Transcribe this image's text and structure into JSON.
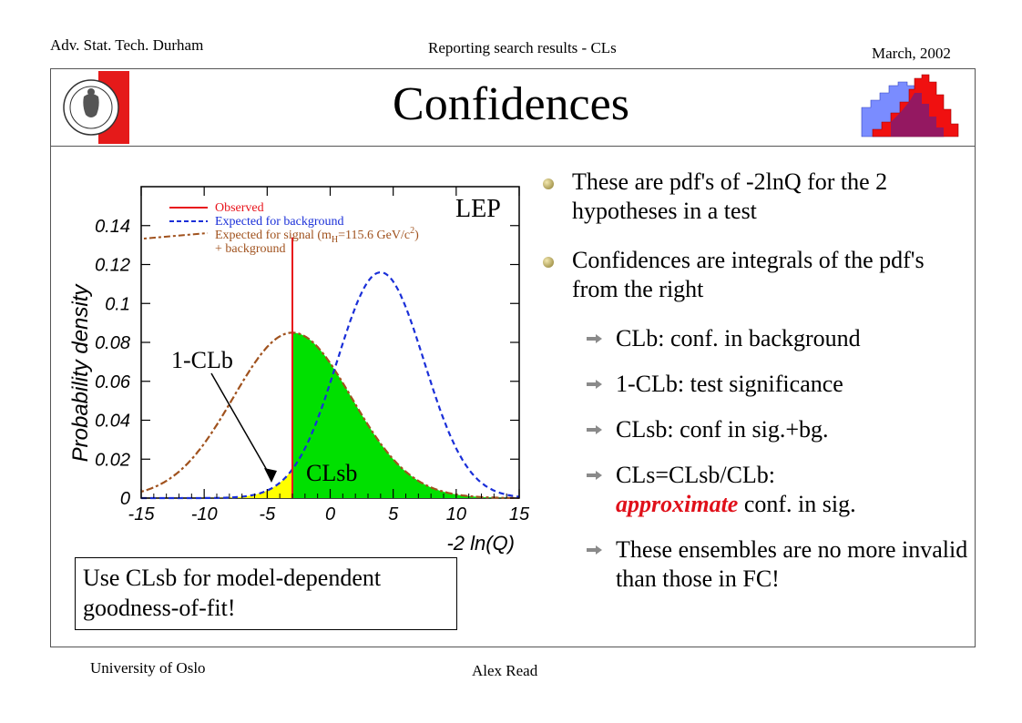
{
  "header": {
    "left": "Adv. Stat. Tech. Durham",
    "center": "Reporting search results - CLs",
    "right": "March, 2002"
  },
  "footer": {
    "left": "University of Oslo",
    "center": "Alex Read"
  },
  "title": "Confidences",
  "bullets": [
    {
      "text": "These are pdf's of -2lnQ for the 2 hypotheses in a test"
    },
    {
      "text": "Confidences are integrals of the pdf's from the right"
    }
  ],
  "sub_bullets": [
    "CLb: conf. in background",
    "1-CLb: test significance",
    "CLsb: conf in sig.+bg.",
    "CLs=CLsb/CLb:",
    "These ensembles are no more invalid than those in FC!"
  ],
  "clsb_rest": {
    "emph": "approximate",
    "tail": " conf. in sig."
  },
  "note_box": "Use CLsb for model-dependent goodness-of-fit!",
  "colors": {
    "observed": "#e8141c",
    "background": "#1a2fd8",
    "signal": "#a0521e",
    "clsb_fill": "#00e000",
    "one_minus_clb_fill": "#ffff00"
  },
  "chart_data": {
    "type": "line",
    "xlabel": "-2 ln(Q)",
    "ylabel": "Probability density",
    "xlim": [
      -15,
      15
    ],
    "ylim": [
      0,
      0.16
    ],
    "x_ticks": [
      -15,
      -10,
      -5,
      0,
      5,
      10,
      15
    ],
    "y_ticks": [
      0,
      0.02,
      0.04,
      0.06,
      0.08,
      0.1,
      0.12,
      0.14
    ],
    "x_tick_labels": [
      "-15",
      "-10",
      "-5",
      "0",
      "5",
      "10",
      "15"
    ],
    "y_tick_labels": [
      "0",
      "0.02",
      "0.04",
      "0.06",
      "0.08",
      "0.1",
      "0.12",
      "0.14"
    ],
    "legend": {
      "position": "top",
      "entries": [
        "Observed",
        "Expected for background",
        "Expected for signal (m",
        "+ background"
      ],
      "signal_mass": "H",
      "signal_tail": "=115.6 GeV/c",
      "signal_exp": "2",
      "signal_close": ")"
    },
    "corner_label": "LEP",
    "observed_x": -3.0,
    "annotations": [
      "1-CLb",
      "CLsb"
    ],
    "series": [
      {
        "name": "Expected for background",
        "mean": 4.0,
        "sigma": 3.45,
        "peak": 0.116
      },
      {
        "name": "Expected for signal (mH=115.6 GeV/c2) + background",
        "mean": -3.0,
        "sigma": 4.7,
        "peak": 0.085
      }
    ]
  }
}
